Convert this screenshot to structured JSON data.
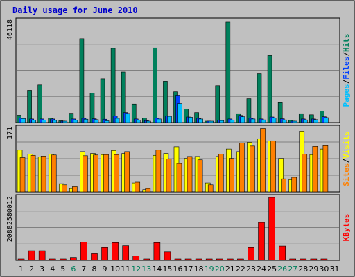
{
  "title": "Daily usage for June 2010",
  "colors": {
    "background": "#c0c0c0",
    "plot_bg": "#c0c0c0",
    "grid": "#808080",
    "title": "#0000cc",
    "hits": "#00805c",
    "files": "#0040ff",
    "pages": "#00c0ff",
    "visits": "#ffff00",
    "sites": "#ff8000",
    "kbytes": "#ff0000",
    "weekend_label": "#00805c",
    "weekday_label": "#000080"
  },
  "chart_data": [
    {
      "type": "bar",
      "name": "hits-files-pages",
      "ymax_label": "46118",
      "ylim": [
        0,
        46118
      ],
      "right_labels": [
        {
          "text": "Pages",
          "color": "#00c0ff"
        },
        {
          "text": "/",
          "color": "#000000"
        },
        {
          "text": "Files",
          "color": "#0040ff"
        },
        {
          "text": "/",
          "color": "#000000"
        },
        {
          "text": "Hits",
          "color": "#00805c"
        }
      ],
      "series": [
        {
          "name": "Hits",
          "values": [
            3300,
            14600,
            17000,
            2000,
            800,
            4200,
            38000,
            13300,
            19800,
            33600,
            22900,
            8400,
            2000,
            33800,
            18700,
            13900,
            6100,
            4500,
            300,
            16700,
            45500,
            4000,
            10800,
            22100,
            30300,
            9000,
            1000,
            4000,
            3500,
            5200
          ]
        },
        {
          "name": "Files",
          "values": [
            2000,
            1600,
            1600,
            1600,
            300,
            1600,
            1900,
            1700,
            1500,
            3000,
            4500,
            1600,
            900,
            2100,
            3000,
            12400,
            2500,
            1900,
            200,
            1100,
            1600,
            3200,
            2000,
            1600,
            2500,
            1700,
            200,
            1600,
            1600,
            2600
          ]
        },
        {
          "name": "Pages",
          "values": [
            1800,
            1100,
            1100,
            1000,
            200,
            1100,
            1500,
            1300,
            800,
            1900,
            4100,
            1100,
            600,
            1600,
            2800,
            8600,
            2400,
            1600,
            100,
            900,
            1100,
            2600,
            1600,
            1200,
            2000,
            1200,
            100,
            1200,
            1300,
            2200
          ]
        }
      ]
    },
    {
      "type": "bar",
      "name": "visits-sites",
      "ymax_label": "171",
      "ylim": [
        0,
        171
      ],
      "right_labels": [
        {
          "text": "Sites",
          "color": "#ff8000"
        },
        {
          "text": "/",
          "color": "#000000"
        },
        {
          "text": "Visits",
          "color": "#ffff00"
        }
      ],
      "series": [
        {
          "name": "Visits",
          "values": [
            112,
            101,
            94,
            101,
            22,
            9,
            108,
            103,
            100,
            111,
            103,
            24,
            6,
            98,
            103,
            121,
            90,
            95,
            24,
            95,
            115,
            108,
            133,
            142,
            137,
            90,
            33,
            163,
            100,
            115
          ]
        },
        {
          "name": "Sites",
          "values": [
            92,
            98,
            96,
            99,
            19,
            14,
            97,
            99,
            100,
            100,
            108,
            26,
            9,
            112,
            88,
            76,
            95,
            86,
            19,
            101,
            90,
            131,
            123,
            170,
            137,
            35,
            39,
            101,
            122,
            124
          ]
        }
      ]
    },
    {
      "type": "bar",
      "name": "kbytes",
      "ymax_label": "20882580012",
      "ylim": [
        0,
        20882580012
      ],
      "right_labels": [
        {
          "text": "KBytes",
          "color": "#ff0000"
        }
      ],
      "series": [
        {
          "name": "KBytes",
          "values": [
            0,
            3200000000,
            3200000000,
            0,
            0,
            1000000000,
            6100000000,
            2200000000,
            4300000000,
            5900000000,
            4900000000,
            1500000000,
            0,
            5900000000,
            2800000000,
            300000000,
            0,
            0,
            0,
            0,
            0,
            0,
            4300000000,
            12600000000,
            20882580012,
            4800000000,
            0,
            0,
            0,
            0
          ]
        }
      ]
    }
  ],
  "x_labels": [
    "1",
    "2",
    "3",
    "4",
    "5",
    "6",
    "7",
    "8",
    "9",
    "10",
    "11",
    "12",
    "13",
    "14",
    "15",
    "16",
    "17",
    "18",
    "19",
    "20",
    "21",
    "22",
    "23",
    "24",
    "25",
    "26",
    "27",
    "28",
    "29",
    "30",
    "31"
  ],
  "weekend_days": [
    6,
    12,
    13,
    19,
    20,
    26,
    27
  ]
}
